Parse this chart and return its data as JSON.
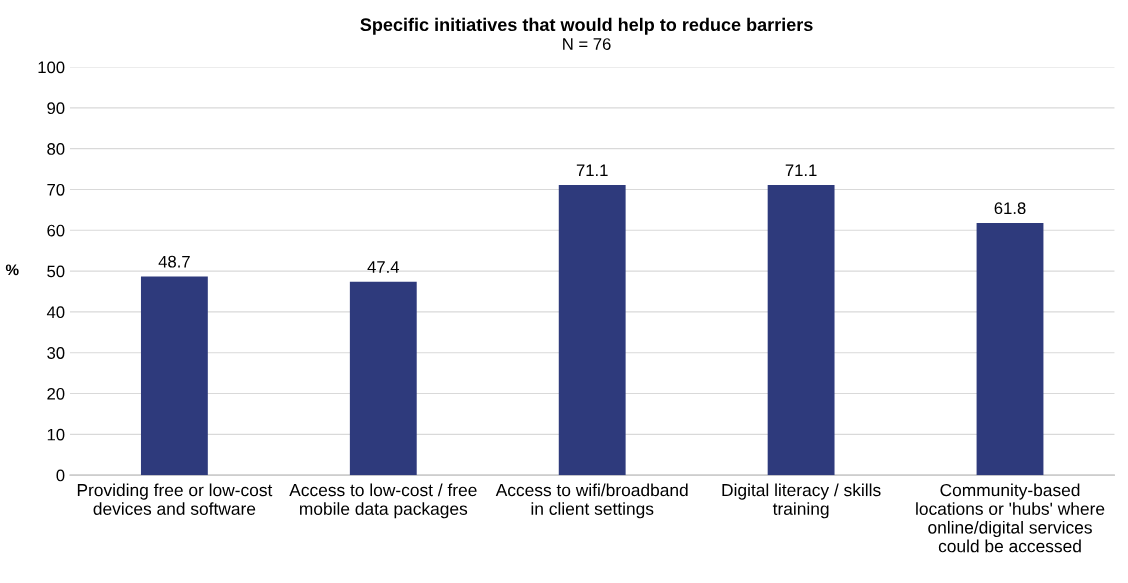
{
  "chart_data": {
    "type": "bar",
    "title": "Specific initiatives that would help to reduce barriers",
    "subtitle": "N = 76",
    "ylabel": "%",
    "categories": [
      "Providing free or low-cost\ndevices and software",
      "Access to low-cost / free\nmobile data packages",
      "Access to wifi/broadband\nin client settings",
      "Digital literacy / skills\ntraining",
      "Community-based\nlocations or 'hubs' where\nonline/digital services\ncould be accessed"
    ],
    "values": [
      48.7,
      47.4,
      71.1,
      71.1,
      61.8
    ],
    "color": "#2e3a7c",
    "ylim": [
      0,
      100
    ],
    "yticks": [
      0,
      10,
      20,
      30,
      40,
      50,
      60,
      70,
      80,
      90,
      100
    ],
    "grid": "y",
    "data_labels": true
  }
}
